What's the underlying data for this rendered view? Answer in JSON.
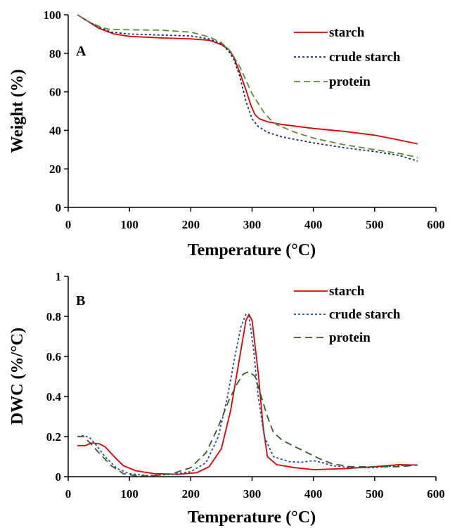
{
  "figure": {
    "background": "#ffffff"
  },
  "chart_data": [
    {
      "type": "line",
      "panel_label": "A",
      "xlabel": "Temperature (°C)",
      "ylabel": "Weight (%)",
      "xlim": [
        0,
        600
      ],
      "ylim": [
        0,
        100
      ],
      "x_ticks": [
        0,
        100,
        200,
        300,
        400,
        500,
        600
      ],
      "y_ticks": [
        0,
        20,
        40,
        60,
        80,
        100
      ],
      "grid": false,
      "legend_position": "top-right",
      "series": [
        {
          "name": "starch",
          "color": "#e00000",
          "dash": "solid",
          "points": [
            [
              15,
              100
            ],
            [
              30,
              97
            ],
            [
              50,
              93
            ],
            [
              75,
              90
            ],
            [
              100,
              88.8
            ],
            [
              150,
              88
            ],
            [
              200,
              87.5
            ],
            [
              230,
              86.8
            ],
            [
              250,
              84.5
            ],
            [
              262,
              82
            ],
            [
              270,
              78
            ],
            [
              280,
              70
            ],
            [
              290,
              61
            ],
            [
              298,
              53
            ],
            [
              305,
              48
            ],
            [
              312,
              46
            ],
            [
              325,
              44.5
            ],
            [
              350,
              43
            ],
            [
              400,
              41
            ],
            [
              450,
              39.5
            ],
            [
              500,
              37.5
            ],
            [
              540,
              35
            ],
            [
              570,
              33
            ]
          ]
        },
        {
          "name": "crude starch",
          "color": "#1a2a80",
          "dash": "3,3",
          "points": [
            [
              15,
              100
            ],
            [
              30,
              97
            ],
            [
              50,
              93.5
            ],
            [
              70,
              91
            ],
            [
              100,
              90
            ],
            [
              150,
              89.5
            ],
            [
              200,
              89
            ],
            [
              230,
              87.5
            ],
            [
              250,
              85
            ],
            [
              262,
              81
            ],
            [
              270,
              77
            ],
            [
              280,
              68
            ],
            [
              290,
              55
            ],
            [
              300,
              46
            ],
            [
              310,
              42
            ],
            [
              325,
              39
            ],
            [
              350,
              36.5
            ],
            [
              400,
              33.5
            ],
            [
              450,
              31
            ],
            [
              500,
              29
            ],
            [
              540,
              27
            ],
            [
              570,
              24
            ]
          ]
        },
        {
          "name": "protein",
          "color": "#5a8c3a",
          "dash": "9,5",
          "points": [
            [
              15,
              100
            ],
            [
              30,
              97
            ],
            [
              50,
              94
            ],
            [
              65,
              92.5
            ],
            [
              100,
              92.2
            ],
            [
              150,
              92
            ],
            [
              200,
              91
            ],
            [
              230,
              88.5
            ],
            [
              250,
              85.5
            ],
            [
              265,
              81
            ],
            [
              280,
              73
            ],
            [
              290,
              66
            ],
            [
              300,
              59
            ],
            [
              310,
              54
            ],
            [
              320,
              49
            ],
            [
              330,
              45.5
            ],
            [
              340,
              43
            ],
            [
              370,
              39
            ],
            [
              400,
              36
            ],
            [
              450,
              32.5
            ],
            [
              500,
              30
            ],
            [
              540,
              28
            ],
            [
              570,
              26
            ]
          ]
        }
      ]
    },
    {
      "type": "line",
      "panel_label": "B",
      "xlabel": "Temperature (°C)",
      "ylabel": "DWC (%/°C)",
      "xlim": [
        0,
        600
      ],
      "ylim": [
        0,
        1
      ],
      "x_ticks": [
        0,
        100,
        200,
        300,
        400,
        500,
        600
      ],
      "y_ticks": [
        0,
        0.2,
        0.4,
        0.6,
        0.8,
        1
      ],
      "y_tick_labels": [
        "0",
        "0.2",
        "0.4",
        "0.6",
        "0.8",
        "1"
      ],
      "grid": false,
      "legend_position": "top-right",
      "series": [
        {
          "name": "starch",
          "color": "#e00000",
          "dash": "solid",
          "points": [
            [
              15,
              0.155
            ],
            [
              28,
              0.155
            ],
            [
              38,
              0.168
            ],
            [
              50,
              0.165
            ],
            [
              60,
              0.15
            ],
            [
              75,
              0.1
            ],
            [
              90,
              0.055
            ],
            [
              110,
              0.03
            ],
            [
              140,
              0.015
            ],
            [
              180,
              0.012
            ],
            [
              210,
              0.02
            ],
            [
              230,
              0.05
            ],
            [
              250,
              0.14
            ],
            [
              265,
              0.33
            ],
            [
              280,
              0.6
            ],
            [
              290,
              0.78
            ],
            [
              295,
              0.81
            ],
            [
              300,
              0.78
            ],
            [
              310,
              0.52
            ],
            [
              318,
              0.25
            ],
            [
              325,
              0.1
            ],
            [
              340,
              0.06
            ],
            [
              370,
              0.045
            ],
            [
              400,
              0.035
            ],
            [
              450,
              0.04
            ],
            [
              500,
              0.05
            ],
            [
              540,
              0.06
            ],
            [
              570,
              0.058
            ]
          ]
        },
        {
          "name": "crude starch",
          "color": "#1f4aa8",
          "dash": "3,3",
          "points": [
            [
              15,
              0.2
            ],
            [
              25,
              0.205
            ],
            [
              35,
              0.195
            ],
            [
              45,
              0.16
            ],
            [
              60,
              0.1
            ],
            [
              80,
              0.04
            ],
            [
              100,
              0.015
            ],
            [
              130,
              0.005
            ],
            [
              170,
              0.012
            ],
            [
              200,
              0.025
            ],
            [
              225,
              0.07
            ],
            [
              245,
              0.2
            ],
            [
              260,
              0.4
            ],
            [
              272,
              0.6
            ],
            [
              282,
              0.75
            ],
            [
              290,
              0.81
            ],
            [
              295,
              0.8
            ],
            [
              302,
              0.65
            ],
            [
              310,
              0.4
            ],
            [
              320,
              0.2
            ],
            [
              335,
              0.1
            ],
            [
              360,
              0.075
            ],
            [
              380,
              0.072
            ],
            [
              400,
              0.08
            ],
            [
              415,
              0.07
            ],
            [
              430,
              0.055
            ],
            [
              460,
              0.045
            ],
            [
              500,
              0.045
            ],
            [
              540,
              0.055
            ],
            [
              570,
              0.058
            ]
          ]
        },
        {
          "name": "protein",
          "color": "#3a5a2a",
          "dash": "10,6",
          "points": [
            [
              15,
              0.2
            ],
            [
              25,
              0.2
            ],
            [
              35,
              0.17
            ],
            [
              50,
              0.12
            ],
            [
              70,
              0.055
            ],
            [
              90,
              0.015
            ],
            [
              110,
              0.005
            ],
            [
              140,
              0.005
            ],
            [
              170,
              0.015
            ],
            [
              200,
              0.045
            ],
            [
              225,
              0.12
            ],
            [
              245,
              0.25
            ],
            [
              262,
              0.38
            ],
            [
              275,
              0.46
            ],
            [
              285,
              0.51
            ],
            [
              295,
              0.525
            ],
            [
              305,
              0.5
            ],
            [
              315,
              0.4
            ],
            [
              325,
              0.3
            ],
            [
              335,
              0.22
            ],
            [
              350,
              0.18
            ],
            [
              370,
              0.15
            ],
            [
              390,
              0.12
            ],
            [
              410,
              0.09
            ],
            [
              430,
              0.065
            ],
            [
              460,
              0.05
            ],
            [
              500,
              0.05
            ],
            [
              540,
              0.05
            ],
            [
              570,
              0.058
            ]
          ]
        }
      ]
    }
  ]
}
